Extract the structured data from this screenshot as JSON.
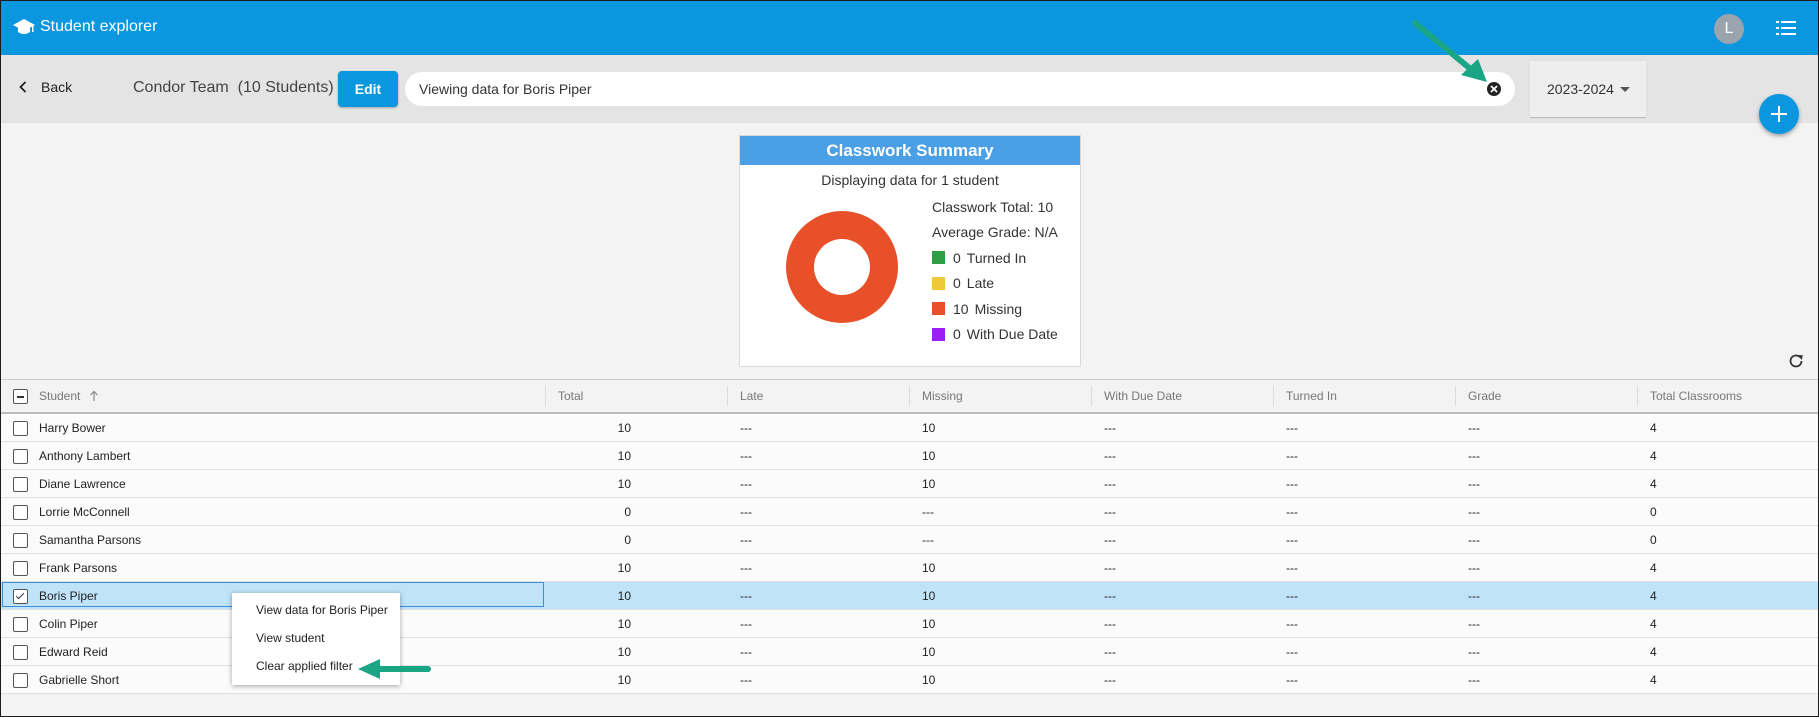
{
  "header": {
    "app_title": "Student explorer",
    "logo_icon": "graduation-cap-icon",
    "avatar_initial": "L",
    "menu_icon": "list-menu-icon"
  },
  "toolbar": {
    "back_label": "Back",
    "team_label": "Condor Team  (10 Students)",
    "edit_label": "Edit",
    "search_value": "Viewing data for Boris Piper",
    "year_value": "2023-2024",
    "accent": "#0a97e0"
  },
  "summary": {
    "title": "Classwork Summary",
    "subtitle": "Displaying data for 1 student",
    "total_label": "Classwork Total:",
    "total_value": "10",
    "avg_label": "Average Grade:",
    "avg_value": "N/A",
    "legend": [
      {
        "count": "0",
        "label": "Turned In",
        "color": "#2e9e44"
      },
      {
        "count": "0",
        "label": "Late",
        "color": "#f0c93a"
      },
      {
        "count": "10",
        "label": "Missing",
        "color": "#e8502a"
      },
      {
        "count": "0",
        "label": "With Due Date",
        "color": "#9b1ff2"
      }
    ]
  },
  "chart_data": {
    "type": "pie",
    "categories": [
      "Turned In",
      "Late",
      "Missing",
      "With Due Date"
    ],
    "values": [
      0,
      0,
      10,
      0
    ],
    "colors": [
      "#2e9e44",
      "#f0c93a",
      "#e8502a",
      "#9b1ff2"
    ],
    "title": "Classwork Summary"
  },
  "table": {
    "columns": [
      "Student",
      "Total",
      "Late",
      "Missing",
      "With Due Date",
      "Turned In",
      "Grade",
      "Total Classrooms"
    ],
    "sort_icon": "arrow-up-icon",
    "rows": [
      {
        "student": "Harry Bower",
        "total": "10",
        "late": "---",
        "missing": "10",
        "due": "---",
        "turned": "---",
        "grade": "---",
        "classrooms": "4"
      },
      {
        "student": "Anthony Lambert",
        "total": "10",
        "late": "---",
        "missing": "10",
        "due": "---",
        "turned": "---",
        "grade": "---",
        "classrooms": "4"
      },
      {
        "student": "Diane Lawrence",
        "total": "10",
        "late": "---",
        "missing": "10",
        "due": "---",
        "turned": "---",
        "grade": "---",
        "classrooms": "4"
      },
      {
        "student": "Lorrie McConnell",
        "total": "0",
        "late": "---",
        "missing": "---",
        "due": "---",
        "turned": "---",
        "grade": "---",
        "classrooms": "0"
      },
      {
        "student": "Samantha Parsons",
        "total": "0",
        "late": "---",
        "missing": "---",
        "due": "---",
        "turned": "---",
        "grade": "---",
        "classrooms": "0"
      },
      {
        "student": "Frank Parsons",
        "total": "10",
        "late": "---",
        "missing": "10",
        "due": "---",
        "turned": "---",
        "grade": "---",
        "classrooms": "4"
      },
      {
        "student": "Boris Piper",
        "total": "10",
        "late": "---",
        "missing": "10",
        "due": "---",
        "turned": "---",
        "grade": "---",
        "classrooms": "4",
        "selected": true
      },
      {
        "student": "Colin Piper",
        "total": "10",
        "late": "---",
        "missing": "10",
        "due": "---",
        "turned": "---",
        "grade": "---",
        "classrooms": "4"
      },
      {
        "student": "Edward Reid",
        "total": "10",
        "late": "---",
        "missing": "10",
        "due": "---",
        "turned": "---",
        "grade": "---",
        "classrooms": "4"
      },
      {
        "student": "Gabrielle Short",
        "total": "10",
        "late": "---",
        "missing": "10",
        "due": "---",
        "turned": "---",
        "grade": "---",
        "classrooms": "4"
      }
    ]
  },
  "context_menu": {
    "items": [
      "View data for Boris Piper",
      "View student",
      "Clear applied filter"
    ]
  },
  "annotation_color": "#1aa584"
}
